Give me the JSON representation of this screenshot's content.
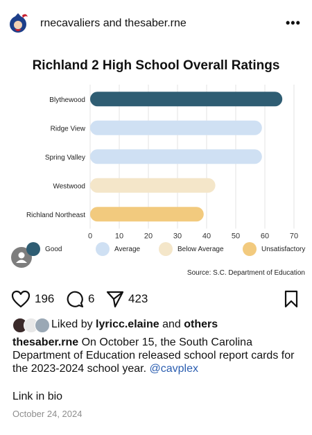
{
  "post": {
    "authors": "rnecavaliers and thesaber.rne",
    "more_icon": "more-horizontal-icon",
    "likes": "196",
    "comments": "6",
    "shares": "423",
    "liked_by_prefix": "Liked by ",
    "liked_by_user": "lyricc.elaine",
    "liked_by_middle": " and ",
    "liked_by_others": "others",
    "caption_user": "thesaber.rne",
    "caption_text": " On October 15, the South Carolina Department of Education released school report cards for the 2023-2024 school year. ",
    "caption_mention": "@cavplex",
    "link_in_bio": "Link in bio",
    "date": "October 24, 2024"
  },
  "chart_data": {
    "type": "bar",
    "orientation": "horizontal",
    "title": "Richland 2 High School Overall Ratings",
    "categories": [
      "Blythewood",
      "Ridge View",
      "Spring Valley",
      "Westwood",
      "Richland Northeast"
    ],
    "values": [
      66,
      59,
      59,
      43,
      39
    ],
    "ratings": [
      "Good",
      "Average",
      "Average",
      "Below Average",
      "Unsatisfactory"
    ],
    "xlim": [
      0,
      70
    ],
    "xticks": [
      0,
      10,
      20,
      30,
      40,
      50,
      60,
      70
    ],
    "grid": true,
    "legend": [
      {
        "label": "Good",
        "color": "#2f5d73"
      },
      {
        "label": "Average",
        "color": "#cfe0f3"
      },
      {
        "label": "Below Average",
        "color": "#f4e6c9"
      },
      {
        "label": "Unsatisfactory",
        "color": "#f2ca7e"
      }
    ],
    "legend_position": "bottom",
    "source": "Source: S.C. Department of Education"
  }
}
